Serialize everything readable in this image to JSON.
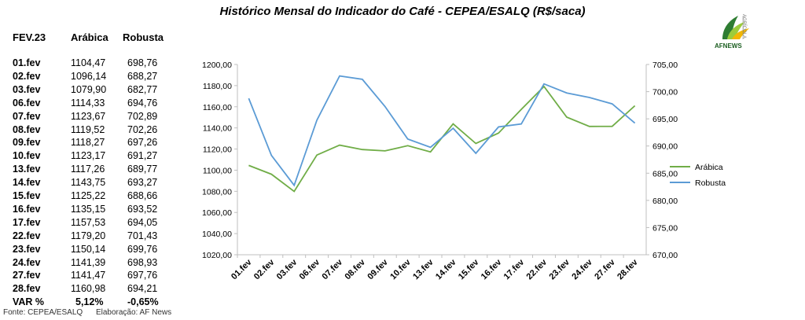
{
  "title": "Histórico Mensal do Indicador do Café - CEPEA/ESALQ (R$/saca)",
  "logo": {
    "brand": "AFNEWS",
    "sub": "AGRÍCOLA"
  },
  "table": {
    "headers": [
      "FEV.23",
      "Arábica",
      "Robusta"
    ],
    "rows": [
      [
        "01.fev",
        "1104,47",
        "698,76"
      ],
      [
        "02.fev",
        "1096,14",
        "688,27"
      ],
      [
        "03.fev",
        "1079,90",
        "682,77"
      ],
      [
        "06.fev",
        "1114,33",
        "694,76"
      ],
      [
        "07.fev",
        "1123,67",
        "702,89"
      ],
      [
        "08.fev",
        "1119,52",
        "702,26"
      ],
      [
        "09.fev",
        "1118,27",
        "697,26"
      ],
      [
        "10.fev",
        "1123,17",
        "691,27"
      ],
      [
        "13.fev",
        "1117,26",
        "689,77"
      ],
      [
        "14.fev",
        "1143,75",
        "693,27"
      ],
      [
        "15.fev",
        "1125,22",
        "688,66"
      ],
      [
        "16.fev",
        "1135,15",
        "693,52"
      ],
      [
        "17.fev",
        "1157,53",
        "694,05"
      ],
      [
        "22.fev",
        "1179,20",
        "701,43"
      ],
      [
        "23.fev",
        "1150,14",
        "699,76"
      ],
      [
        "24.fev",
        "1141,39",
        "698,93"
      ],
      [
        "27.fev",
        "1141,47",
        "697,76"
      ],
      [
        "28.fev",
        "1160,98",
        "694,21"
      ]
    ],
    "var": [
      "VAR %",
      "5,12%",
      "-0,65%"
    ]
  },
  "footer": {
    "source": "Fonte: CEPEA/ESALQ",
    "credit": "Elaboração: AF News"
  },
  "chart_data": {
    "type": "line",
    "categories": [
      "01.fev",
      "02.fev",
      "03.fev",
      "06.fev",
      "07.fev",
      "08.fev",
      "09.fev",
      "10.fev",
      "13.fev",
      "14.fev",
      "15.fev",
      "16.fev",
      "17.fev",
      "22.fev",
      "23.fev",
      "24.fev",
      "27.fev",
      "28.fev"
    ],
    "series": [
      {
        "name": "Arábica",
        "axis": "left",
        "color": "#70ad47",
        "values": [
          1104.47,
          1096.14,
          1079.9,
          1114.33,
          1123.67,
          1119.52,
          1118.27,
          1123.17,
          1117.26,
          1143.75,
          1125.22,
          1135.15,
          1157.53,
          1179.2,
          1150.14,
          1141.39,
          1141.47,
          1160.98
        ]
      },
      {
        "name": "Robusta",
        "axis": "right",
        "color": "#5b9bd5",
        "values": [
          698.76,
          688.27,
          682.77,
          694.76,
          702.89,
          702.26,
          697.26,
          691.27,
          689.77,
          693.27,
          688.66,
          693.52,
          694.05,
          701.43,
          699.76,
          698.93,
          697.76,
          694.21
        ]
      }
    ],
    "ylim_left": [
      1020,
      1200
    ],
    "yticks_left": [
      "1020,00",
      "1040,00",
      "1060,00",
      "1080,00",
      "1100,00",
      "1120,00",
      "1140,00",
      "1160,00",
      "1180,00",
      "1200,00"
    ],
    "ylim_right": [
      670,
      705
    ],
    "yticks_right": [
      "670,00",
      "675,00",
      "680,00",
      "685,00",
      "690,00",
      "695,00",
      "700,00",
      "705,00"
    ],
    "grid": false,
    "legend_position": "right"
  }
}
